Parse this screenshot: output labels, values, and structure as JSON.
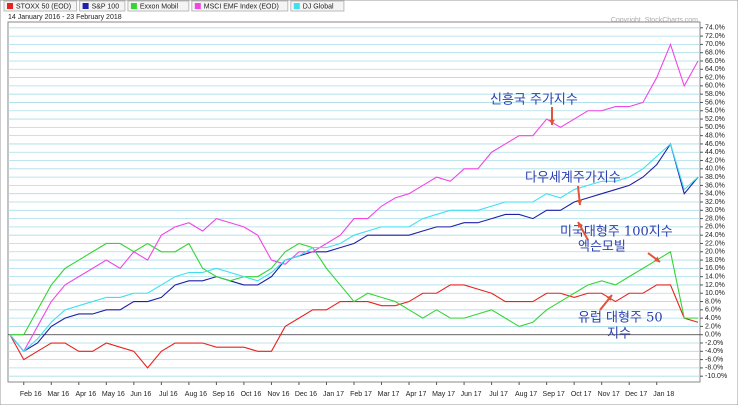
{
  "chart_data": {
    "type": "line",
    "subtitle": "14 January 2016 - 23 February 2018",
    "copyright": "Copyright, StockCharts.com",
    "categories": [
      null,
      "Feb 16",
      null,
      "Mar 16",
      null,
      "Apr 16",
      null,
      "May 16",
      null,
      "Jun 16",
      null,
      "Jul 16",
      null,
      "Aug 16",
      null,
      "Sep 16",
      null,
      "Oct 16",
      null,
      "Nov 16",
      null,
      "Dec 16",
      null,
      "Jan 17",
      null,
      "Feb 17",
      null,
      "Mar 17",
      null,
      "Apr 17",
      null,
      "May 17",
      null,
      "Jun 17",
      null,
      "Jul 17",
      null,
      "Aug 17",
      null,
      "Sep 17",
      null,
      "Oct 17",
      null,
      "Nov 17",
      null,
      "Dec 17",
      null,
      "Jan 18",
      null,
      null,
      null
    ],
    "series": [
      {
        "name": "STOXX 50 (EOD)",
        "color": "#e8231e",
        "values": [
          0,
          -6,
          -4,
          -2,
          -2,
          -4,
          -4,
          -2,
          -3,
          -4,
          -8,
          -4,
          -2,
          -2,
          -2,
          -3,
          -3,
          -3,
          -4,
          -4,
          2,
          4,
          6,
          6,
          8,
          8,
          8,
          7,
          7,
          8,
          10,
          10,
          12,
          12,
          11,
          10,
          8,
          8,
          8,
          10,
          10,
          9,
          10,
          10,
          8,
          10,
          10,
          12,
          12,
          4,
          3
        ]
      },
      {
        "name": "S&P 100",
        "color": "#1f1fa8",
        "values": [
          0,
          -4,
          -2,
          2,
          4,
          5,
          5,
          6,
          6,
          8,
          8,
          9,
          12,
          13,
          13,
          14,
          13,
          12,
          12,
          14,
          18,
          19,
          20,
          20,
          21,
          22,
          24,
          24,
          24,
          24,
          25,
          26,
          26,
          27,
          27,
          28,
          29,
          29,
          28,
          30,
          30,
          32,
          33,
          34,
          35,
          36,
          38,
          41,
          46,
          34,
          38
        ]
      },
      {
        "name": "Exxon Mobil",
        "color": "#35d435",
        "values": [
          0,
          0,
          6,
          12,
          16,
          18,
          20,
          22,
          22,
          20,
          22,
          20,
          20,
          22,
          16,
          14,
          13,
          14,
          14,
          16,
          20,
          22,
          21,
          16,
          12,
          8,
          10,
          9,
          8,
          6,
          4,
          6,
          4,
          4,
          5,
          6,
          4,
          2,
          3,
          6,
          8,
          10,
          12,
          13,
          12,
          14,
          16,
          18,
          20,
          4,
          4
        ]
      },
      {
        "name": "MSCI EMF Index (EOD)",
        "color": "#f046e6",
        "values": [
          0,
          -4,
          2,
          8,
          12,
          14,
          16,
          18,
          16,
          20,
          18,
          24,
          26,
          27,
          25,
          28,
          27,
          26,
          24,
          18,
          17,
          20,
          20,
          22,
          24,
          28,
          28,
          31,
          33,
          34,
          36,
          38,
          37,
          40,
          40,
          44,
          46,
          48,
          48,
          52,
          50,
          52,
          54,
          54,
          55,
          55,
          56,
          62,
          70,
          60,
          66
        ]
      },
      {
        "name": "DJ Global",
        "color": "#3ee0f0",
        "values": [
          0,
          -4,
          -1,
          3,
          6,
          7,
          8,
          9,
          9,
          10,
          10,
          12,
          14,
          15,
          15,
          16,
          15,
          14,
          13,
          15,
          18,
          19,
          21,
          21,
          22,
          24,
          25,
          26,
          26,
          26,
          28,
          29,
          30,
          30,
          30,
          31,
          32,
          32,
          32,
          34,
          33,
          35,
          36,
          37,
          37,
          38,
          40,
          43,
          46,
          35,
          38
        ]
      }
    ],
    "ylim": [
      -11.4,
      75.4
    ],
    "yticks": [
      {
        "value": -10,
        "label": "-10.0%"
      },
      {
        "value": -8,
        "label": "-8.0%"
      },
      {
        "value": -6,
        "label": "-6.0%"
      },
      {
        "value": -4,
        "label": "-4.0%"
      },
      {
        "value": -2,
        "label": "-2.0%"
      },
      {
        "value": 0,
        "label": "0.0%"
      },
      {
        "value": 2,
        "label": "2.0%"
      },
      {
        "value": 4,
        "label": "4.0%"
      },
      {
        "value": 6,
        "label": "6.0%"
      },
      {
        "value": 8,
        "label": "8.0%"
      },
      {
        "value": 10,
        "label": "10.0%"
      },
      {
        "value": 12,
        "label": "12.0%"
      },
      {
        "value": 14,
        "label": "14.0%"
      },
      {
        "value": 16,
        "label": "16.0%"
      },
      {
        "value": 18,
        "label": "18.0%"
      },
      {
        "value": 20,
        "label": "20.0%"
      },
      {
        "value": 22,
        "label": "22.0%"
      },
      {
        "value": 24,
        "label": "24.0%"
      },
      {
        "value": 26,
        "label": "26.0%"
      },
      {
        "value": 28,
        "label": "28.0%"
      },
      {
        "value": 30,
        "label": "30.0%"
      },
      {
        "value": 32,
        "label": "32.0%"
      },
      {
        "value": 34,
        "label": "34.0%"
      },
      {
        "value": 36,
        "label": "36.0%"
      },
      {
        "value": 38,
        "label": "38.0%"
      },
      {
        "value": 40,
        "label": "40.0%"
      },
      {
        "value": 42,
        "label": "42.0%"
      },
      {
        "value": 44,
        "label": "44.0%"
      },
      {
        "value": 46,
        "label": "46.0%"
      },
      {
        "value": 48,
        "label": "48.0%"
      },
      {
        "value": 50,
        "label": "50.0%"
      },
      {
        "value": 52,
        "label": "52.0%"
      },
      {
        "value": 54,
        "label": "54.0%"
      },
      {
        "value": 56,
        "label": "56.0%"
      },
      {
        "value": 58,
        "label": "58.0%"
      },
      {
        "value": 60,
        "label": "60.0%"
      },
      {
        "value": 62,
        "label": "62.0%"
      },
      {
        "value": 64,
        "label": "64.0%"
      },
      {
        "value": 66,
        "label": "66.0%"
      },
      {
        "value": 68,
        "label": "68.0%"
      },
      {
        "value": 70,
        "label": "70.0%"
      },
      {
        "value": 72,
        "label": "72.0%"
      },
      {
        "value": 74,
        "label": "74.0%"
      }
    ],
    "grid": true,
    "annotations": [
      "신흥국 주가지수",
      "다우세계주가지수",
      "미국대형주 100지수",
      "엑슨모빌",
      "유럽 대형주 50",
      "지수"
    ]
  }
}
